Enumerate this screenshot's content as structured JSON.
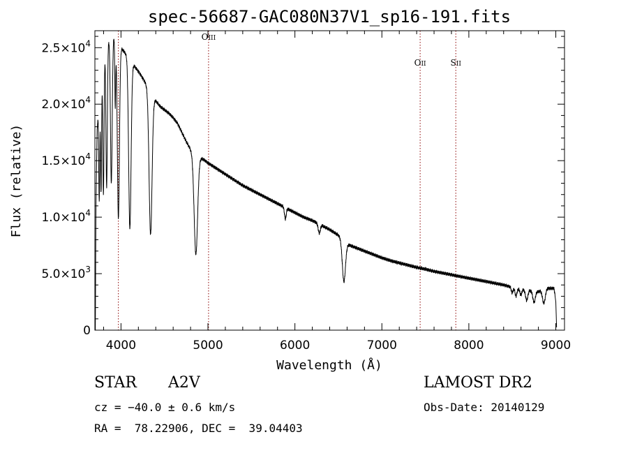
{
  "chart_data": {
    "type": "line",
    "title": "spec-56687-GAC080N37V1_sp16-191.fits",
    "xlabel": "Wavelength (Å)",
    "ylabel": "Flux (relative)",
    "xlim": [
      3700,
      9100
    ],
    "ylim": [
      0,
      26500
    ],
    "grid": false,
    "x_ticks": [
      4000,
      5000,
      6000,
      7000,
      8000,
      9000
    ],
    "x_tick_labels": [
      "4000",
      "5000",
      "6000",
      "7000",
      "8000",
      "9000"
    ],
    "y_ticks": [
      0,
      5000,
      10000,
      15000,
      20000,
      25000
    ],
    "y_tick_labels": [
      {
        "mantissa": "0",
        "exp": ""
      },
      {
        "mantissa": "5.0×10",
        "exp": "3"
      },
      {
        "mantissa": "1.0×10",
        "exp": "4"
      },
      {
        "mantissa": "1.5×10",
        "exp": "4"
      },
      {
        "mantissa": "2.0×10",
        "exp": "4"
      },
      {
        "mantissa": "2.5×10",
        "exp": "4"
      }
    ],
    "line_markers": [
      {
        "label": "OIII",
        "main": "O",
        "sub": "III",
        "wavelength": 5007,
        "label_level": 25700
      },
      {
        "label": "OII",
        "main": "O",
        "sub": "II",
        "wavelength": 7440,
        "label_level": 23400
      },
      {
        "label": "SII",
        "main": "S",
        "sub": "II",
        "wavelength": 7850,
        "label_level": 23400
      },
      {
        "label": "",
        "main": "",
        "sub": "",
        "wavelength": 3970,
        "label_level": null
      }
    ],
    "continuum": [
      [
        3705,
        0
      ],
      [
        3712,
        11000
      ],
      [
        3725,
        17500
      ],
      [
        3745,
        20500
      ],
      [
        3775,
        23000
      ],
      [
        3815,
        24700
      ],
      [
        3860,
        25700
      ],
      [
        3900,
        26100
      ],
      [
        3950,
        25700
      ],
      [
        4000,
        25000
      ],
      [
        4050,
        24500
      ],
      [
        4100,
        24000
      ],
      [
        4150,
        23400
      ],
      [
        4200,
        22900
      ],
      [
        4250,
        22300
      ],
      [
        4300,
        21600
      ],
      [
        4350,
        20800
      ],
      [
        4400,
        20300
      ],
      [
        4450,
        19800
      ],
      [
        4500,
        19500
      ],
      [
        4550,
        19200
      ],
      [
        4600,
        18800
      ],
      [
        4650,
        18300
      ],
      [
        4700,
        17500
      ],
      [
        4750,
        16700
      ],
      [
        4800,
        16000
      ],
      [
        4860,
        15400
      ],
      [
        4900,
        15300
      ],
      [
        4950,
        15100
      ],
      [
        5000,
        14800
      ],
      [
        5100,
        14300
      ],
      [
        5200,
        13800
      ],
      [
        5300,
        13300
      ],
      [
        5400,
        12800
      ],
      [
        5500,
        12400
      ],
      [
        5600,
        12000
      ],
      [
        5700,
        11600
      ],
      [
        5800,
        11200
      ],
      [
        5900,
        10800
      ],
      [
        6000,
        10400
      ],
      [
        6100,
        10000
      ],
      [
        6200,
        9700
      ],
      [
        6300,
        9300
      ],
      [
        6400,
        8900
      ],
      [
        6500,
        8400
      ],
      [
        6600,
        7600
      ],
      [
        6700,
        7300
      ],
      [
        6800,
        7000
      ],
      [
        6900,
        6700
      ],
      [
        7000,
        6400
      ],
      [
        7100,
        6150
      ],
      [
        7200,
        5950
      ],
      [
        7300,
        5750
      ],
      [
        7400,
        5550
      ],
      [
        7500,
        5400
      ],
      [
        7600,
        5200
      ],
      [
        7700,
        5050
      ],
      [
        7800,
        4900
      ],
      [
        7900,
        4750
      ],
      [
        8000,
        4600
      ],
      [
        8100,
        4450
      ],
      [
        8200,
        4300
      ],
      [
        8300,
        4150
      ],
      [
        8400,
        4000
      ],
      [
        8500,
        3800
      ],
      [
        8600,
        3600
      ],
      [
        8700,
        3500
      ],
      [
        8800,
        3400
      ],
      [
        8900,
        3700
      ],
      [
        8980,
        3700
      ],
      [
        9000,
        2500
      ],
      [
        9010,
        0
      ]
    ],
    "absorption_lines": [
      {
        "center": 3750,
        "depth": 9500,
        "width": 6
      },
      {
        "center": 3771,
        "depth": 10500,
        "width": 6
      },
      {
        "center": 3798,
        "depth": 12000,
        "width": 7
      },
      {
        "center": 3835,
        "depth": 12500,
        "width": 8
      },
      {
        "center": 3889,
        "depth": 13000,
        "width": 10
      },
      {
        "center": 3934,
        "depth": 6000,
        "width": 5
      },
      {
        "center": 3970,
        "depth": 15500,
        "width": 12
      },
      {
        "center": 4102,
        "depth": 15000,
        "width": 14
      },
      {
        "center": 4340,
        "depth": 12500,
        "width": 17
      },
      {
        "center": 4861,
        "depth": 8700,
        "width": 20
      },
      {
        "center": 5890,
        "depth": 1000,
        "width": 10
      },
      {
        "center": 6280,
        "depth": 800,
        "width": 12
      },
      {
        "center": 6563,
        "depth": 3600,
        "width": 18
      },
      {
        "center": 8498,
        "depth": 500,
        "width": 10
      },
      {
        "center": 8542,
        "depth": 700,
        "width": 11
      },
      {
        "center": 8598,
        "depth": 500,
        "width": 10
      },
      {
        "center": 8665,
        "depth": 900,
        "width": 13
      },
      {
        "center": 8750,
        "depth": 1000,
        "width": 14
      },
      {
        "center": 8863,
        "depth": 1200,
        "width": 16
      }
    ]
  },
  "info": {
    "object_class": "STAR",
    "subclass": "A2V",
    "survey": "LAMOST DR2",
    "cz": "cz = −40.0 ± 0.6 km/s",
    "obs_date": "Obs-Date: 20140129",
    "ra_dec": "RA =  78.22906, DEC =  39.04403"
  }
}
